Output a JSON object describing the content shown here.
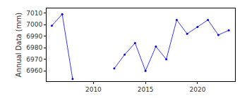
{
  "chart_data": {
    "type": "line",
    "y_label": "Annual Data (mm)",
    "x": [
      2006,
      2007,
      2008,
      2009,
      2010,
      2011,
      2012,
      2013,
      2014,
      2015,
      2016,
      2017,
      2018,
      2019,
      2020,
      2021,
      2022,
      2023
    ],
    "values": [
      6999,
      7009,
      6953,
      null,
      null,
      null,
      6962,
      6974,
      6984,
      6960,
      6981,
      6970,
      7004,
      6992,
      6998,
      7004,
      6991,
      6995
    ],
    "color": "#0000ff",
    "marker": "circle",
    "line_style": "solid",
    "xlim": [
      2005.5,
      2023.6
    ],
    "xticks": [
      2010,
      2015,
      2020
    ],
    "ylim": [
      6951,
      7014
    ],
    "yticks": [
      6960,
      6970,
      6980,
      6990,
      7000,
      7010
    ],
    "grid": false
  }
}
